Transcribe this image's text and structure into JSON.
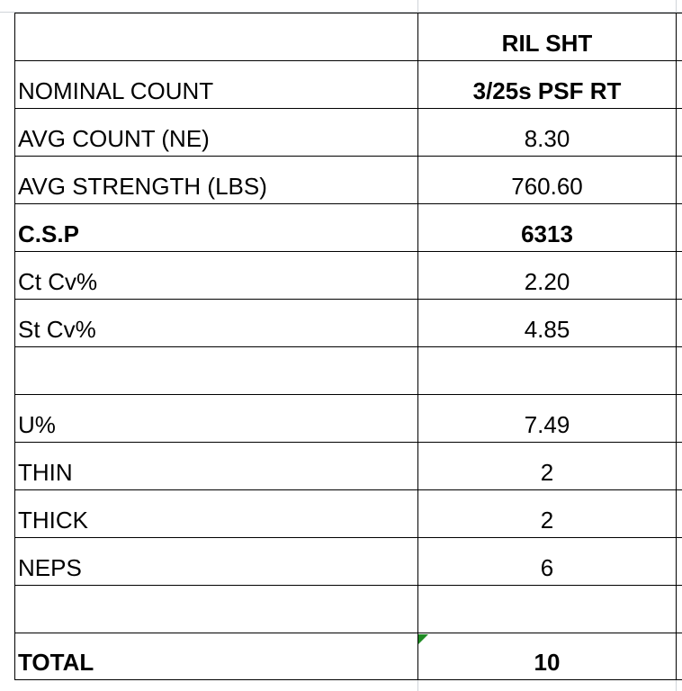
{
  "sheet": {
    "header": {
      "label": "",
      "value": "RIL SHT"
    },
    "rows": [
      {
        "label": "NOMINAL COUNT",
        "value": "3/25s PSF RT",
        "bold_value": true,
        "bold_label": false
      },
      {
        "label": "AVG COUNT (NE)",
        "value": "8.30",
        "bold_value": false,
        "bold_label": false
      },
      {
        "label": "AVG STRENGTH (LBS)",
        "value": "760.60",
        "bold_value": false,
        "bold_label": false
      },
      {
        "label": "C.S.P",
        "value": "6313",
        "bold_value": true,
        "bold_label": true
      },
      {
        "label": "Ct Cv%",
        "value": "2.20",
        "bold_value": false,
        "bold_label": false
      },
      {
        "label": "St Cv%",
        "value": "4.85",
        "bold_value": false,
        "bold_label": false
      },
      {
        "label": "",
        "value": "",
        "bold_value": false,
        "bold_label": false
      },
      {
        "label": "U%",
        "value": "7.49",
        "bold_value": false,
        "bold_label": false
      },
      {
        "label": "THIN",
        "value": "2",
        "bold_value": false,
        "bold_label": false
      },
      {
        "label": "THICK",
        "value": "2",
        "bold_value": false,
        "bold_label": false
      },
      {
        "label": "NEPS",
        "value": "6",
        "bold_value": false,
        "bold_label": false
      },
      {
        "label": "",
        "value": "",
        "bold_value": false,
        "bold_label": false
      },
      {
        "label": "TOTAL",
        "value": "10",
        "bold_value": true,
        "bold_label": true
      }
    ],
    "comment_indicator_color": "#1f8b24"
  }
}
